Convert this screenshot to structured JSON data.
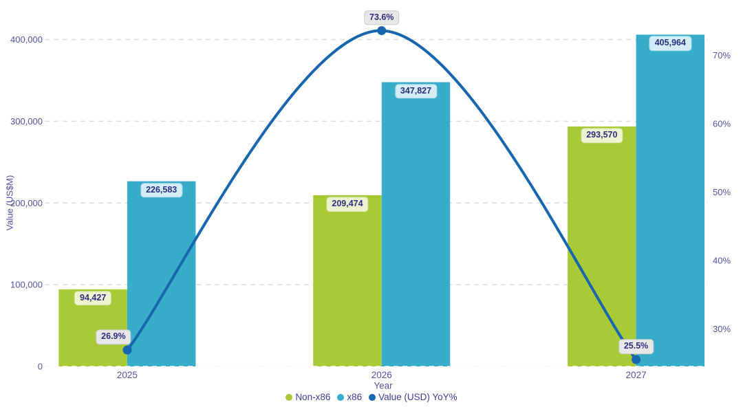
{
  "chart_data": {
    "type": "bar",
    "subtype": "grouped-bars-with-line-overlay",
    "categories": [
      "2025",
      "2026",
      "2027"
    ],
    "series": [
      {
        "name": "Non-x86",
        "type": "bar",
        "axis": "left",
        "color": "#a9ca37",
        "values": [
          94427,
          209474,
          293570
        ],
        "labels": [
          "94,427",
          "209,474",
          "293,570"
        ]
      },
      {
        "name": "x86",
        "type": "bar",
        "axis": "left",
        "color": "#38adc9",
        "values": [
          226583,
          347827,
          405964
        ],
        "labels": [
          "226,583",
          "347,827",
          "405,964"
        ]
      },
      {
        "name": "Value (USD) YoY%",
        "type": "line",
        "axis": "right",
        "color": "#1766ae",
        "values": [
          26.9,
          73.6,
          25.5
        ],
        "labels": [
          "26.9%",
          "73.6%",
          "25.5%"
        ]
      }
    ],
    "title": "",
    "xlabel": "Year",
    "ylabel": "Value (US$M)",
    "y_left": {
      "ticks": [
        0,
        100000,
        200000,
        300000,
        400000
      ],
      "tick_labels": [
        "0",
        "100,000",
        "200,000",
        "300,000",
        "400,000"
      ],
      "min": 0,
      "max": 400000
    },
    "y_right": {
      "ticks": [
        30,
        40,
        50,
        60,
        70
      ],
      "tick_labels": [
        "30%",
        "40%",
        "50%",
        "60%",
        "70%"
      ],
      "plot_edge_min": 24.5,
      "plot_edge_max": 72.3
    },
    "grid": "dashed horizontal",
    "legend_position": "bottom-center"
  },
  "colors": {
    "non_x86_bar": "#a9ca37",
    "x86_bar": "#38adc9",
    "yoy_line": "#1766ae",
    "axis_text": "#5253a3",
    "data_label_text": "#2c2d80",
    "gridline": "#dcdcdc",
    "label_bg_green": "#eef4d0",
    "label_bg_cyan": "#d3edf6",
    "label_bg_gray": "#e7e7e7",
    "background": "#ffffff"
  }
}
